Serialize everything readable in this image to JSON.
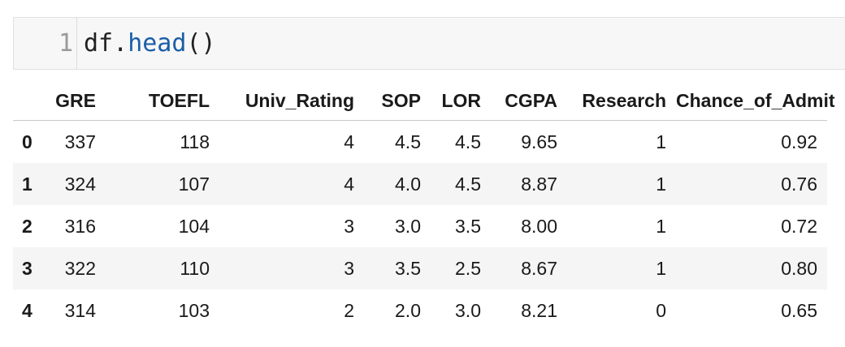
{
  "cell": {
    "line_number": "1",
    "code_obj": "df.",
    "code_fn": "head",
    "code_parens": "()"
  },
  "table": {
    "columns": [
      "GRE",
      "TOEFL",
      "Univ_Rating",
      "SOP",
      "LOR",
      "CGPA",
      "Research",
      "Chance_of_Admit"
    ],
    "rows": [
      {
        "index": "0",
        "cells": [
          "337",
          "118",
          "4",
          "4.5",
          "4.5",
          "9.65",
          "1",
          "0.92"
        ]
      },
      {
        "index": "1",
        "cells": [
          "324",
          "107",
          "4",
          "4.0",
          "4.5",
          "8.87",
          "1",
          "0.76"
        ]
      },
      {
        "index": "2",
        "cells": [
          "316",
          "104",
          "3",
          "3.0",
          "3.5",
          "8.00",
          "1",
          "0.72"
        ]
      },
      {
        "index": "3",
        "cells": [
          "322",
          "110",
          "3",
          "3.5",
          "2.5",
          "8.67",
          "1",
          "0.80"
        ]
      },
      {
        "index": "4",
        "cells": [
          "314",
          "103",
          "2",
          "2.0",
          "3.0",
          "8.21",
          "0",
          "0.65"
        ]
      }
    ]
  }
}
